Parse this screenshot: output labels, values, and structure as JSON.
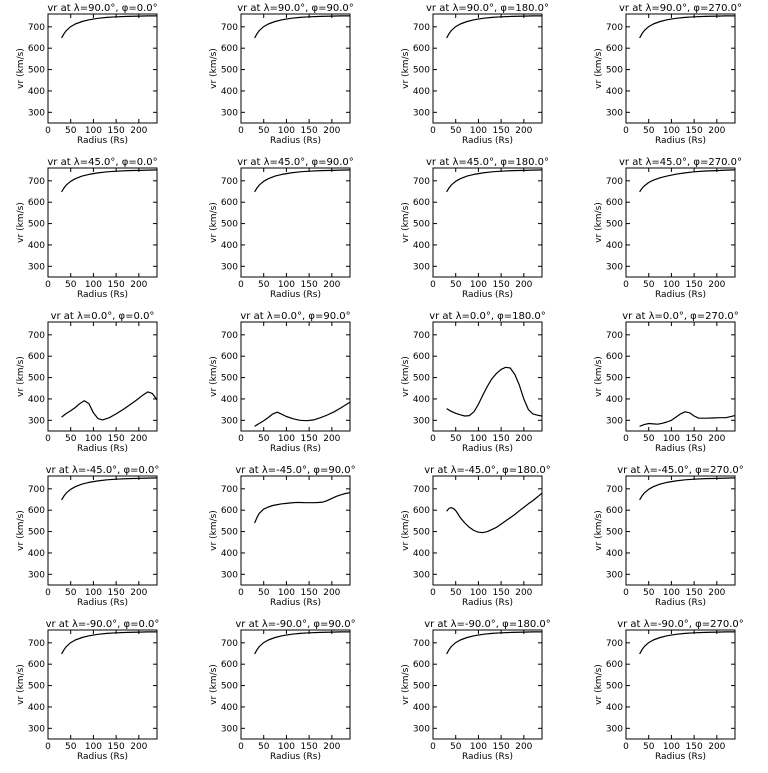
{
  "chart_data": [
    {
      "type": "line",
      "title": "vr at λ=90.0°, φ=0.0°",
      "xlabel": "Radius (Rs)",
      "ylabel": "vr (km/s)",
      "xlim": [
        0,
        240
      ],
      "ylim": [
        250,
        760
      ],
      "xticks": [
        0,
        50,
        100,
        150,
        200
      ],
      "yticks": [
        300,
        400,
        500,
        600,
        700
      ],
      "x": [
        30,
        35,
        40,
        50,
        60,
        75,
        90,
        110,
        130,
        150,
        175,
        200,
        220,
        240
      ],
      "y": [
        648,
        667,
        682,
        701,
        713,
        725,
        733,
        740,
        744,
        747,
        749,
        750,
        751,
        751
      ]
    },
    {
      "type": "line",
      "title": "vr at λ=90.0°, φ=90.0°",
      "xlabel": "Radius (Rs)",
      "ylabel": "vr (km/s)",
      "xlim": [
        0,
        240
      ],
      "ylim": [
        250,
        760
      ],
      "xticks": [
        0,
        50,
        100,
        150,
        200
      ],
      "yticks": [
        300,
        400,
        500,
        600,
        700
      ],
      "x": [
        30,
        35,
        40,
        50,
        60,
        75,
        90,
        110,
        130,
        150,
        175,
        200,
        220,
        240
      ],
      "y": [
        648,
        667,
        682,
        701,
        713,
        725,
        733,
        740,
        744,
        747,
        749,
        750,
        751,
        751
      ]
    },
    {
      "type": "line",
      "title": "vr at λ=90.0°, φ=180.0°",
      "xlabel": "Radius (Rs)",
      "ylabel": "vr (km/s)",
      "xlim": [
        0,
        240
      ],
      "ylim": [
        250,
        760
      ],
      "xticks": [
        0,
        50,
        100,
        150,
        200
      ],
      "yticks": [
        300,
        400,
        500,
        600,
        700
      ],
      "x": [
        30,
        35,
        40,
        50,
        60,
        75,
        90,
        110,
        130,
        150,
        175,
        200,
        220,
        240
      ],
      "y": [
        648,
        667,
        682,
        701,
        713,
        725,
        733,
        740,
        744,
        747,
        749,
        750,
        751,
        751
      ]
    },
    {
      "type": "line",
      "title": "vr at λ=90.0°, φ=270.0°",
      "xlabel": "Radius (Rs)",
      "ylabel": "vr (km/s)",
      "xlim": [
        0,
        240
      ],
      "ylim": [
        250,
        760
      ],
      "xticks": [
        0,
        50,
        100,
        150,
        200
      ],
      "yticks": [
        300,
        400,
        500,
        600,
        700
      ],
      "x": [
        30,
        35,
        40,
        50,
        60,
        75,
        90,
        110,
        130,
        150,
        175,
        200,
        220,
        240
      ],
      "y": [
        648,
        667,
        682,
        701,
        713,
        725,
        733,
        740,
        744,
        747,
        749,
        750,
        751,
        751
      ]
    },
    {
      "type": "line",
      "title": "vr at λ=45.0°, φ=0.0°",
      "xlabel": "Radius (Rs)",
      "ylabel": "vr (km/s)",
      "xlim": [
        0,
        240
      ],
      "ylim": [
        250,
        760
      ],
      "xticks": [
        0,
        50,
        100,
        150,
        200
      ],
      "yticks": [
        300,
        400,
        500,
        600,
        700
      ],
      "x": [
        30,
        35,
        40,
        50,
        60,
        75,
        90,
        110,
        130,
        150,
        175,
        200,
        220,
        240
      ],
      "y": [
        648,
        666,
        680,
        698,
        710,
        722,
        730,
        737,
        742,
        745,
        748,
        749,
        750,
        751
      ]
    },
    {
      "type": "line",
      "title": "vr at λ=45.0°, φ=90.0°",
      "xlabel": "Radius (Rs)",
      "ylabel": "vr (km/s)",
      "xlim": [
        0,
        240
      ],
      "ylim": [
        250,
        760
      ],
      "xticks": [
        0,
        50,
        100,
        150,
        200
      ],
      "yticks": [
        300,
        400,
        500,
        600,
        700
      ],
      "x": [
        30,
        35,
        40,
        50,
        60,
        75,
        90,
        110,
        130,
        150,
        175,
        200,
        220,
        240
      ],
      "y": [
        648,
        666,
        680,
        698,
        710,
        722,
        730,
        737,
        742,
        745,
        748,
        749,
        750,
        751
      ]
    },
    {
      "type": "line",
      "title": "vr at λ=45.0°, φ=180.0°",
      "xlabel": "Radius (Rs)",
      "ylabel": "vr (km/s)",
      "xlim": [
        0,
        240
      ],
      "ylim": [
        250,
        760
      ],
      "xticks": [
        0,
        50,
        100,
        150,
        200
      ],
      "yticks": [
        300,
        400,
        500,
        600,
        700
      ],
      "x": [
        30,
        35,
        40,
        50,
        60,
        75,
        90,
        110,
        130,
        150,
        175,
        200,
        220,
        240
      ],
      "y": [
        648,
        666,
        680,
        698,
        710,
        722,
        730,
        737,
        742,
        745,
        748,
        749,
        750,
        751
      ]
    },
    {
      "type": "line",
      "title": "vr at λ=45.0°, φ=270.0°",
      "xlabel": "Radius (Rs)",
      "ylabel": "vr (km/s)",
      "xlim": [
        0,
        240
      ],
      "ylim": [
        250,
        760
      ],
      "xticks": [
        0,
        50,
        100,
        150,
        200
      ],
      "yticks": [
        300,
        400,
        500,
        600,
        700
      ],
      "x": [
        30,
        35,
        40,
        50,
        60,
        75,
        90,
        110,
        130,
        150,
        175,
        200,
        220,
        240
      ],
      "y": [
        648,
        664,
        676,
        692,
        703,
        714,
        722,
        731,
        737,
        742,
        746,
        748,
        750,
        751
      ]
    },
    {
      "type": "line",
      "title": "vr at λ=0.0°, φ=0.0°",
      "xlabel": "Radius (Rs)",
      "ylabel": "vr (km/s)",
      "xlim": [
        0,
        240
      ],
      "ylim": [
        250,
        760
      ],
      "xticks": [
        0,
        50,
        100,
        150,
        200
      ],
      "yticks": [
        300,
        400,
        500,
        600,
        700
      ],
      "x": [
        30,
        40,
        50,
        60,
        70,
        80,
        90,
        100,
        110,
        120,
        135,
        150,
        165,
        180,
        195,
        210,
        220,
        230,
        240
      ],
      "y": [
        315,
        332,
        345,
        360,
        378,
        392,
        378,
        335,
        308,
        302,
        312,
        330,
        350,
        372,
        395,
        420,
        433,
        425,
        395
      ]
    },
    {
      "type": "line",
      "title": "vr at λ=0.0°, φ=90.0°",
      "xlabel": "Radius (Rs)",
      "ylabel": "vr (km/s)",
      "xlim": [
        0,
        240
      ],
      "ylim": [
        250,
        760
      ],
      "xticks": [
        0,
        50,
        100,
        150,
        200
      ],
      "yticks": [
        300,
        400,
        500,
        600,
        700
      ],
      "x": [
        30,
        40,
        50,
        60,
        70,
        80,
        90,
        100,
        115,
        130,
        145,
        160,
        175,
        190,
        205,
        220,
        240
      ],
      "y": [
        272,
        285,
        298,
        313,
        330,
        338,
        328,
        318,
        307,
        300,
        298,
        302,
        312,
        325,
        340,
        358,
        385
      ]
    },
    {
      "type": "line",
      "title": "vr at λ=0.0°, φ=180.0°",
      "xlabel": "Radius (Rs)",
      "ylabel": "vr (km/s)",
      "xlim": [
        0,
        240
      ],
      "ylim": [
        250,
        760
      ],
      "xticks": [
        0,
        50,
        100,
        150,
        200
      ],
      "yticks": [
        300,
        400,
        500,
        600,
        700
      ],
      "x": [
        30,
        40,
        50,
        60,
        70,
        80,
        90,
        100,
        110,
        120,
        130,
        140,
        150,
        160,
        170,
        180,
        190,
        200,
        210,
        220,
        230,
        240
      ],
      "y": [
        355,
        342,
        333,
        326,
        320,
        322,
        340,
        375,
        420,
        460,
        495,
        520,
        538,
        548,
        545,
        515,
        465,
        400,
        350,
        330,
        324,
        320
      ]
    },
    {
      "type": "line",
      "title": "vr at λ=0.0°, φ=270.0°",
      "xlabel": "Radius (Rs)",
      "ylabel": "vr (km/s)",
      "xlim": [
        0,
        240
      ],
      "ylim": [
        250,
        760
      ],
      "xticks": [
        0,
        50,
        100,
        150,
        200
      ],
      "yticks": [
        300,
        400,
        500,
        600,
        700
      ],
      "x": [
        30,
        40,
        50,
        60,
        70,
        80,
        90,
        100,
        110,
        120,
        130,
        140,
        150,
        160,
        175,
        190,
        205,
        220,
        240
      ],
      "y": [
        272,
        280,
        285,
        283,
        282,
        286,
        292,
        300,
        315,
        330,
        340,
        335,
        320,
        310,
        310,
        311,
        312,
        312,
        322
      ]
    },
    {
      "type": "line",
      "title": "vr at λ=-45.0°, φ=0.0°",
      "xlabel": "Radius (Rs)",
      "ylabel": "vr (km/s)",
      "xlim": [
        0,
        240
      ],
      "ylim": [
        250,
        760
      ],
      "xticks": [
        0,
        50,
        100,
        150,
        200
      ],
      "yticks": [
        300,
        400,
        500,
        600,
        700
      ],
      "x": [
        30,
        35,
        40,
        50,
        60,
        75,
        90,
        110,
        130,
        150,
        175,
        200,
        220,
        240
      ],
      "y": [
        648,
        666,
        680,
        698,
        710,
        722,
        730,
        737,
        742,
        745,
        748,
        749,
        750,
        751
      ]
    },
    {
      "type": "line",
      "title": "vr at λ=-45.0°, φ=90.0°",
      "xlabel": "Radius (Rs)",
      "ylabel": "vr (km/s)",
      "xlim": [
        0,
        240
      ],
      "ylim": [
        250,
        760
      ],
      "xticks": [
        0,
        50,
        100,
        150,
        200
      ],
      "yticks": [
        300,
        400,
        500,
        600,
        700
      ],
      "x": [
        30,
        35,
        40,
        50,
        60,
        70,
        80,
        90,
        100,
        110,
        120,
        130,
        140,
        150,
        160,
        170,
        180,
        190,
        200,
        210,
        220,
        230,
        240
      ],
      "y": [
        540,
        565,
        585,
        605,
        615,
        622,
        626,
        630,
        632,
        634,
        636,
        636,
        635,
        635,
        635,
        636,
        638,
        645,
        655,
        665,
        672,
        678,
        682
      ]
    },
    {
      "type": "line",
      "title": "vr at λ=-45.0°, φ=180.0°",
      "xlabel": "Radius (Rs)",
      "ylabel": "vr (km/s)",
      "xlim": [
        0,
        240
      ],
      "ylim": [
        250,
        760
      ],
      "xticks": [
        0,
        50,
        100,
        150,
        200
      ],
      "yticks": [
        300,
        400,
        500,
        600,
        700
      ],
      "x": [
        30,
        35,
        40,
        45,
        50,
        55,
        60,
        70,
        80,
        90,
        100,
        110,
        120,
        130,
        140,
        150,
        160,
        170,
        180,
        190,
        200,
        210,
        220,
        230,
        240
      ],
      "y": [
        595,
        608,
        612,
        608,
        598,
        582,
        565,
        540,
        520,
        505,
        497,
        495,
        500,
        510,
        520,
        535,
        550,
        565,
        580,
        597,
        613,
        630,
        645,
        662,
        680
      ]
    },
    {
      "type": "line",
      "title": "vr at λ=-45.0°, φ=270.0°",
      "xlabel": "Radius (Rs)",
      "ylabel": "vr (km/s)",
      "xlim": [
        0,
        240
      ],
      "ylim": [
        250,
        760
      ],
      "xticks": [
        0,
        50,
        100,
        150,
        200
      ],
      "yticks": [
        300,
        400,
        500,
        600,
        700
      ],
      "x": [
        30,
        35,
        40,
        50,
        60,
        75,
        90,
        110,
        130,
        150,
        175,
        200,
        220,
        240
      ],
      "y": [
        648,
        666,
        680,
        698,
        710,
        722,
        730,
        737,
        742,
        745,
        748,
        749,
        750,
        751
      ]
    },
    {
      "type": "line",
      "title": "vr at λ=-90.0°, φ=0.0°",
      "xlabel": "Radius (Rs)",
      "ylabel": "vr (km/s)",
      "xlim": [
        0,
        240
      ],
      "ylim": [
        250,
        760
      ],
      "xticks": [
        0,
        50,
        100,
        150,
        200
      ],
      "yticks": [
        300,
        400,
        500,
        600,
        700
      ],
      "x": [
        30,
        35,
        40,
        50,
        60,
        75,
        90,
        110,
        130,
        150,
        175,
        200,
        220,
        240
      ],
      "y": [
        648,
        667,
        682,
        701,
        713,
        725,
        733,
        740,
        744,
        747,
        749,
        750,
        751,
        751
      ]
    },
    {
      "type": "line",
      "title": "vr at λ=-90.0°, φ=90.0°",
      "xlabel": "Radius (Rs)",
      "ylabel": "vr (km/s)",
      "xlim": [
        0,
        240
      ],
      "ylim": [
        250,
        760
      ],
      "xticks": [
        0,
        50,
        100,
        150,
        200
      ],
      "yticks": [
        300,
        400,
        500,
        600,
        700
      ],
      "x": [
        30,
        35,
        40,
        50,
        60,
        75,
        90,
        110,
        130,
        150,
        175,
        200,
        220,
        240
      ],
      "y": [
        648,
        667,
        682,
        701,
        713,
        725,
        733,
        740,
        744,
        747,
        749,
        750,
        751,
        751
      ]
    },
    {
      "type": "line",
      "title": "vr at λ=-90.0°, φ=180.0°",
      "xlabel": "Radius (Rs)",
      "ylabel": "vr (km/s)",
      "xlim": [
        0,
        240
      ],
      "ylim": [
        250,
        760
      ],
      "xticks": [
        0,
        50,
        100,
        150,
        200
      ],
      "yticks": [
        300,
        400,
        500,
        600,
        700
      ],
      "x": [
        30,
        35,
        40,
        50,
        60,
        75,
        90,
        110,
        130,
        150,
        175,
        200,
        220,
        240
      ],
      "y": [
        648,
        667,
        682,
        701,
        713,
        725,
        733,
        740,
        744,
        747,
        749,
        750,
        751,
        751
      ]
    },
    {
      "type": "line",
      "title": "vr at λ=-90.0°, φ=270.0°",
      "xlabel": "Radius (Rs)",
      "ylabel": "vr (km/s)",
      "xlim": [
        0,
        240
      ],
      "ylim": [
        250,
        760
      ],
      "xticks": [
        0,
        50,
        100,
        150,
        200
      ],
      "yticks": [
        300,
        400,
        500,
        600,
        700
      ],
      "x": [
        30,
        35,
        40,
        50,
        60,
        75,
        90,
        110,
        130,
        150,
        175,
        200,
        220,
        240
      ],
      "y": [
        648,
        667,
        682,
        701,
        713,
        725,
        733,
        740,
        744,
        747,
        749,
        750,
        751,
        751
      ]
    }
  ]
}
